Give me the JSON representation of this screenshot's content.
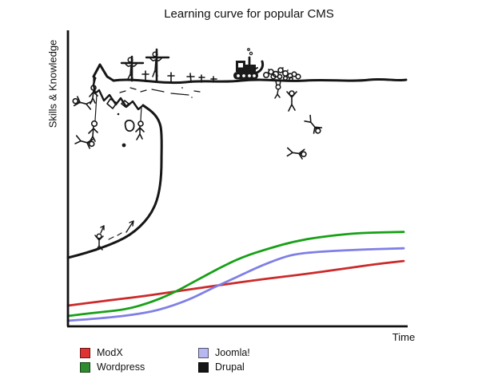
{
  "chart": {
    "title": "Learning curve for popular CMS",
    "y_axis_label": "Skills & Knowledge",
    "x_axis_label": "Time"
  },
  "legend": {
    "items": [
      {
        "label": "ModX",
        "swatch": "#df3232"
      },
      {
        "label": "Wordpress",
        "swatch": "#2e8b2e"
      },
      {
        "label": "Joomla!",
        "swatch": "#b7b7f2"
      },
      {
        "label": "Drupal",
        "swatch": "#151515"
      }
    ]
  },
  "chart_data": {
    "type": "line",
    "title": "Learning curve for popular CMS",
    "xlabel": "Time",
    "ylabel": "Skills & Knowledge",
    "axes_numeric": false,
    "grid": false,
    "legend_position": "bottom-left",
    "x_units": "percent-of-time-axis",
    "y_units": "percent-of-skill-axis",
    "xlim": [
      0,
      100
    ],
    "ylim": [
      0,
      100
    ],
    "series": [
      {
        "name": "ModX",
        "color": "#cc2a2a",
        "points": [
          [
            0,
            7
          ],
          [
            11,
            8.6
          ],
          [
            23,
            10.2
          ],
          [
            34,
            12.1
          ],
          [
            46,
            14
          ],
          [
            58,
            15.9
          ],
          [
            70,
            17.5
          ],
          [
            82,
            19.4
          ],
          [
            92,
            21
          ],
          [
            100,
            22
          ]
        ]
      },
      {
        "name": "Wordpress",
        "color": "#17a017",
        "points": [
          [
            0,
            3.5
          ],
          [
            8,
            4.6
          ],
          [
            17,
            5.6
          ],
          [
            24,
            7.8
          ],
          [
            31,
            11
          ],
          [
            38,
            15.3
          ],
          [
            45,
            19.6
          ],
          [
            52,
            23.4
          ],
          [
            60,
            26.3
          ],
          [
            68,
            28.8
          ],
          [
            77,
            30.4
          ],
          [
            87,
            31.5
          ],
          [
            100,
            31.8
          ]
        ]
      },
      {
        "name": "Joomla!",
        "color": "#7f7fe6",
        "points": [
          [
            0,
            1.9
          ],
          [
            10,
            2.7
          ],
          [
            19,
            3.8
          ],
          [
            27,
            5.4
          ],
          [
            36,
            8.9
          ],
          [
            43,
            12.9
          ],
          [
            50,
            16.4
          ],
          [
            57,
            20.2
          ],
          [
            63,
            22.8
          ],
          [
            67,
            24.2
          ],
          [
            73,
            25
          ],
          [
            85,
            25.8
          ],
          [
            100,
            26.3
          ]
        ]
      },
      {
        "name": "Drupal",
        "color": "#111111",
        "illustration": "hand-drawn cliff: curve rises then becomes a vertical cliff wall with an overhang; top plateau holds grave crosses, two crucifixes, hanged figures on ropes, falling people, and a bulldozer pushing a pile of skulls/rocks off the edge",
        "points": [
          [
            0,
            23.4
          ],
          [
            8,
            26
          ],
          [
            15,
            30.5
          ],
          [
            20,
            36
          ],
          [
            24,
            43
          ],
          [
            26.5,
            52
          ],
          [
            27.5,
            62
          ],
          [
            27.8,
            72
          ],
          [
            26,
            76
          ],
          [
            13,
            83
          ],
          [
            9.5,
            88
          ],
          [
            13,
            83
          ],
          [
            30,
            83
          ],
          [
            50,
            83.3
          ],
          [
            70,
            83
          ],
          [
            99.5,
            83.5
          ]
        ]
      }
    ]
  }
}
